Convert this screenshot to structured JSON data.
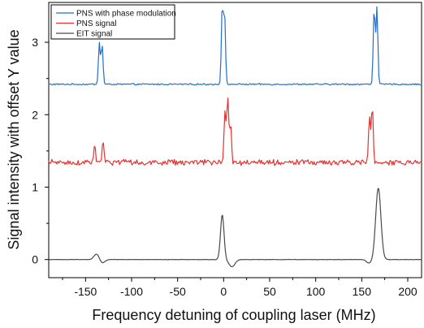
{
  "chart_data": {
    "type": "line",
    "title": "",
    "xlabel": "Frequency detuning of coupling laser (MHz)",
    "ylabel": "Signal intensity with offset Y value",
    "xlim": [
      -190,
      215
    ],
    "ylim": [
      -0.25,
      3.55
    ],
    "x_ticks": [
      -150,
      -100,
      -50,
      0,
      50,
      100,
      150,
      200
    ],
    "x_tick_labels": [
      "-150",
      "-100",
      "-50",
      "0",
      "50",
      "100",
      "150",
      "200"
    ],
    "y_ticks": [
      0,
      1,
      2,
      3
    ],
    "y_tick_labels": [
      "0",
      "1",
      "2",
      "3"
    ],
    "grid": false,
    "legend_position": "top-left",
    "series": [
      {
        "name": "PNS with phase modulation",
        "color": "#1f6fd1",
        "baseline": 2.42,
        "noise": 0.012,
        "peaks": [
          {
            "center": -135,
            "height": 0.58
          },
          {
            "center": -132,
            "height": 0.55
          },
          {
            "center": -1.5,
            "height": 1.07
          },
          {
            "center": 1.0,
            "height": 0.97
          },
          {
            "center": 163.5,
            "height": 1.05
          },
          {
            "center": 166.5,
            "height": 1.07
          }
        ],
        "dips": []
      },
      {
        "name": "PNS signal",
        "color": "#e83232",
        "baseline": 1.34,
        "noise": 0.045,
        "peaks": [
          {
            "center": -140,
            "height": 0.22
          },
          {
            "center": -131,
            "height": 0.28
          },
          {
            "center": 1.5,
            "height": 0.74
          },
          {
            "center": 4.5,
            "height": 0.92
          },
          {
            "center": 7.5,
            "height": 0.55
          },
          {
            "center": 158.5,
            "height": 0.64
          },
          {
            "center": 161.5,
            "height": 0.76
          }
        ],
        "dips": []
      },
      {
        "name": "EIT signal",
        "color": "#4a4a4a",
        "baseline": 0.0,
        "noise": 0.003,
        "peaks": [
          {
            "center": -138,
            "height": 0.08
          },
          {
            "center": -1.5,
            "height": 0.62
          },
          {
            "center": 168,
            "height": 0.99
          }
        ],
        "dips": [
          {
            "center": -132,
            "depth": 0.05
          },
          {
            "center": 9,
            "depth": 0.1
          },
          {
            "center": 158,
            "depth": 0.05
          }
        ]
      }
    ]
  }
}
